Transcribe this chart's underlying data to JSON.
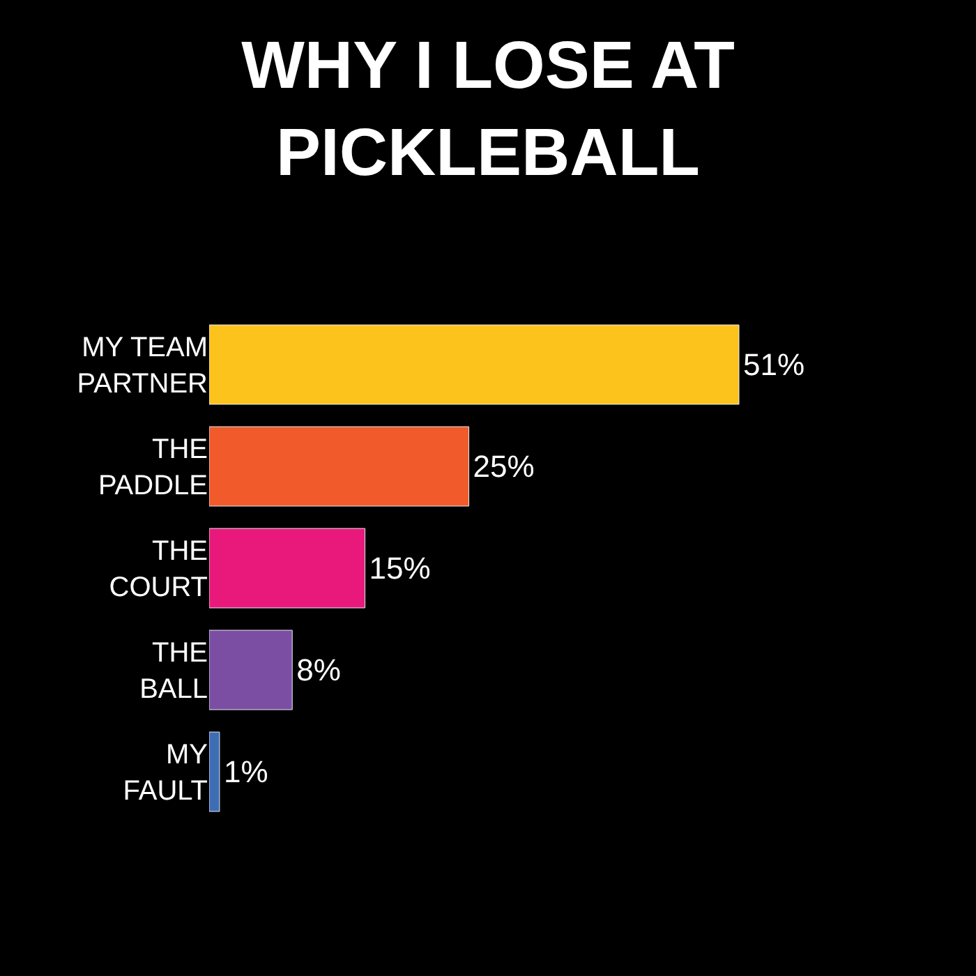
{
  "chart_data": {
    "type": "bar",
    "orientation": "horizontal",
    "title": "WHY I LOSE AT\nPICKLEBALL",
    "categories": [
      "MY TEAM\nPARTNER",
      "THE\nPADDLE",
      "THE\nCOURT",
      "THE\nBALL",
      "MY\nFAULT"
    ],
    "values": [
      51,
      25,
      15,
      8,
      1
    ],
    "colors": [
      "#fbc31b",
      "#f15a2b",
      "#e8197b",
      "#7b4ea3",
      "#3e6db5"
    ],
    "value_labels": [
      "51%",
      "25%",
      "15%",
      "8%",
      "1%"
    ]
  }
}
